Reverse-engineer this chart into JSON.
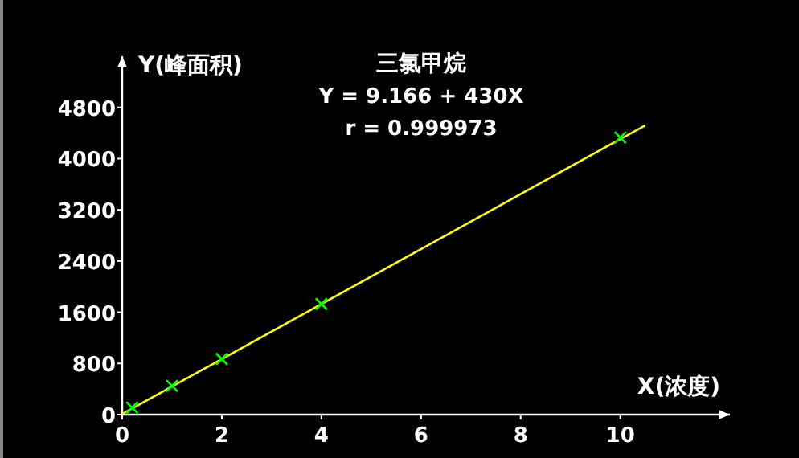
{
  "chart_data": {
    "type": "scatter",
    "title": "三氯甲烷",
    "xlabel": "X(浓度)",
    "ylabel": "Y(峰面积)",
    "annotations": [
      "Y = 9.166 + 430X",
      "r = 0.999973"
    ],
    "xlim": [
      0,
      12.2
    ],
    "ylim": [
      0,
      5600
    ],
    "xticks": [
      0,
      2,
      4,
      6,
      8,
      10
    ],
    "yticks": [
      0,
      800,
      1600,
      2400,
      3200,
      4000,
      4800
    ],
    "series": [
      {
        "marker": "cross",
        "color": "#00ff00",
        "x": [
          0.2,
          1,
          2,
          4,
          10
        ],
        "values": [
          110,
          450,
          870,
          1730,
          4330
        ]
      },
      {
        "type": "line",
        "marker": "none",
        "color": "#ffff00",
        "x": [
          0,
          10.5
        ],
        "values": [
          10,
          4520
        ]
      }
    ]
  }
}
